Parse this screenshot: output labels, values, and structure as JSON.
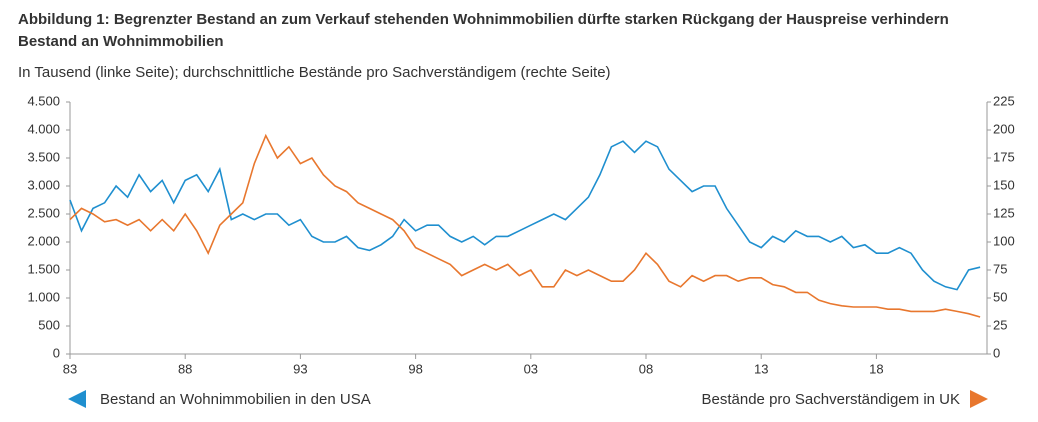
{
  "chart_data": {
    "type": "line",
    "title": "Abbildung 1: Begrenzter Bestand an zum Verkauf stehenden Wohnimmobilien dürfte starken Rückgang der Hauspreise verhindern",
    "subtitle": "Bestand an Wohnimmobilien",
    "axis_note": "In Tausend (linke Seite); durchschnittliche Bestände pro Sachverständigem (rechte Seite)",
    "x": [
      1983,
      1983.5,
      1984,
      1984.5,
      1985,
      1985.5,
      1986,
      1986.5,
      1987,
      1987.5,
      1988,
      1988.5,
      1989,
      1989.5,
      1990,
      1990.5,
      1991,
      1991.5,
      1992,
      1992.5,
      1993,
      1993.5,
      1994,
      1994.5,
      1995,
      1995.5,
      1996,
      1996.5,
      1997,
      1997.5,
      1998,
      1998.5,
      1999,
      1999.5,
      2000,
      2000.5,
      2001,
      2001.5,
      2002,
      2002.5,
      2003,
      2003.5,
      2004,
      2004.5,
      2005,
      2005.5,
      2006,
      2006.5,
      2007,
      2007.5,
      2008,
      2008.5,
      2009,
      2009.5,
      2010,
      2010.5,
      2011,
      2011.5,
      2012,
      2012.5,
      2013,
      2013.5,
      2014,
      2014.5,
      2015,
      2015.5,
      2016,
      2016.5,
      2017,
      2017.5,
      2018,
      2018.5,
      2019,
      2019.5,
      2020,
      2020.5,
      2021,
      2021.5,
      2022,
      2022.5
    ],
    "xlim": [
      1983,
      2022.8
    ],
    "xticks": [
      {
        "value": 1983,
        "label": "83"
      },
      {
        "value": 1988,
        "label": "88"
      },
      {
        "value": 1993,
        "label": "93"
      },
      {
        "value": 1998,
        "label": "98"
      },
      {
        "value": 2003,
        "label": "03"
      },
      {
        "value": 2008,
        "label": "08"
      },
      {
        "value": 2013,
        "label": "13"
      },
      {
        "value": 2018,
        "label": "18"
      }
    ],
    "ylim": [
      0,
      4500
    ],
    "yticks": [
      0,
      500,
      {
        "value": 1000,
        "label": "1.000"
      },
      {
        "value": 1500,
        "label": "1.500"
      },
      {
        "value": 2000,
        "label": "2.000"
      },
      {
        "value": 2500,
        "label": "2.500"
      },
      {
        "value": 3000,
        "label": "3.000"
      },
      {
        "value": 3500,
        "label": "3.500"
      },
      {
        "value": 4000,
        "label": "4.000"
      },
      {
        "value": 4500,
        "label": "4.500"
      }
    ],
    "y2lim": [
      0,
      225
    ],
    "y2ticks": [
      0,
      25,
      50,
      75,
      100,
      125,
      150,
      175,
      200,
      225
    ],
    "series": [
      {
        "name": "Bestand an Wohnimmobilien in den USA",
        "color": "#1f8fcf",
        "values": [
          2750,
          2200,
          2600,
          2700,
          3000,
          2800,
          3200,
          2900,
          3100,
          2700,
          3100,
          3200,
          2900,
          3300,
          2400,
          2500,
          2400,
          2500,
          2500,
          2300,
          2400,
          2100,
          2000,
          2000,
          2100,
          1900,
          1850,
          1950,
          2100,
          2400,
          2200,
          2300,
          2300,
          2100,
          2000,
          2100,
          1950,
          2100,
          2100,
          2200,
          2300,
          2400,
          2500,
          2400,
          2600,
          2800,
          3200,
          3700,
          3800,
          3600,
          3800,
          3700,
          3300,
          3100,
          2900,
          3000,
          3000,
          2600,
          2300,
          2000,
          1900,
          2100,
          2000,
          2200,
          2100,
          2100,
          2000,
          2100,
          1900,
          1950,
          1800,
          1800,
          1900,
          1800,
          1500,
          1300,
          1200,
          1150,
          1500,
          1550
        ]
      },
      {
        "name": "Bestände pro Sachverständigem in UK",
        "color": "#e8772e",
        "axis": "y2",
        "values": [
          120,
          130,
          125,
          118,
          120,
          115,
          120,
          110,
          120,
          110,
          125,
          110,
          90,
          115,
          125,
          135,
          170,
          195,
          175,
          185,
          170,
          175,
          160,
          150,
          145,
          135,
          130,
          125,
          120,
          110,
          95,
          90,
          85,
          80,
          70,
          75,
          80,
          75,
          80,
          70,
          75,
          60,
          60,
          75,
          70,
          75,
          70,
          65,
          65,
          75,
          90,
          80,
          65,
          60,
          70,
          65,
          70,
          70,
          65,
          68,
          68,
          62,
          60,
          55,
          55,
          48,
          45,
          43,
          42,
          42,
          42,
          40,
          40,
          38,
          38,
          38,
          40,
          38,
          36,
          33
        ]
      }
    ]
  }
}
